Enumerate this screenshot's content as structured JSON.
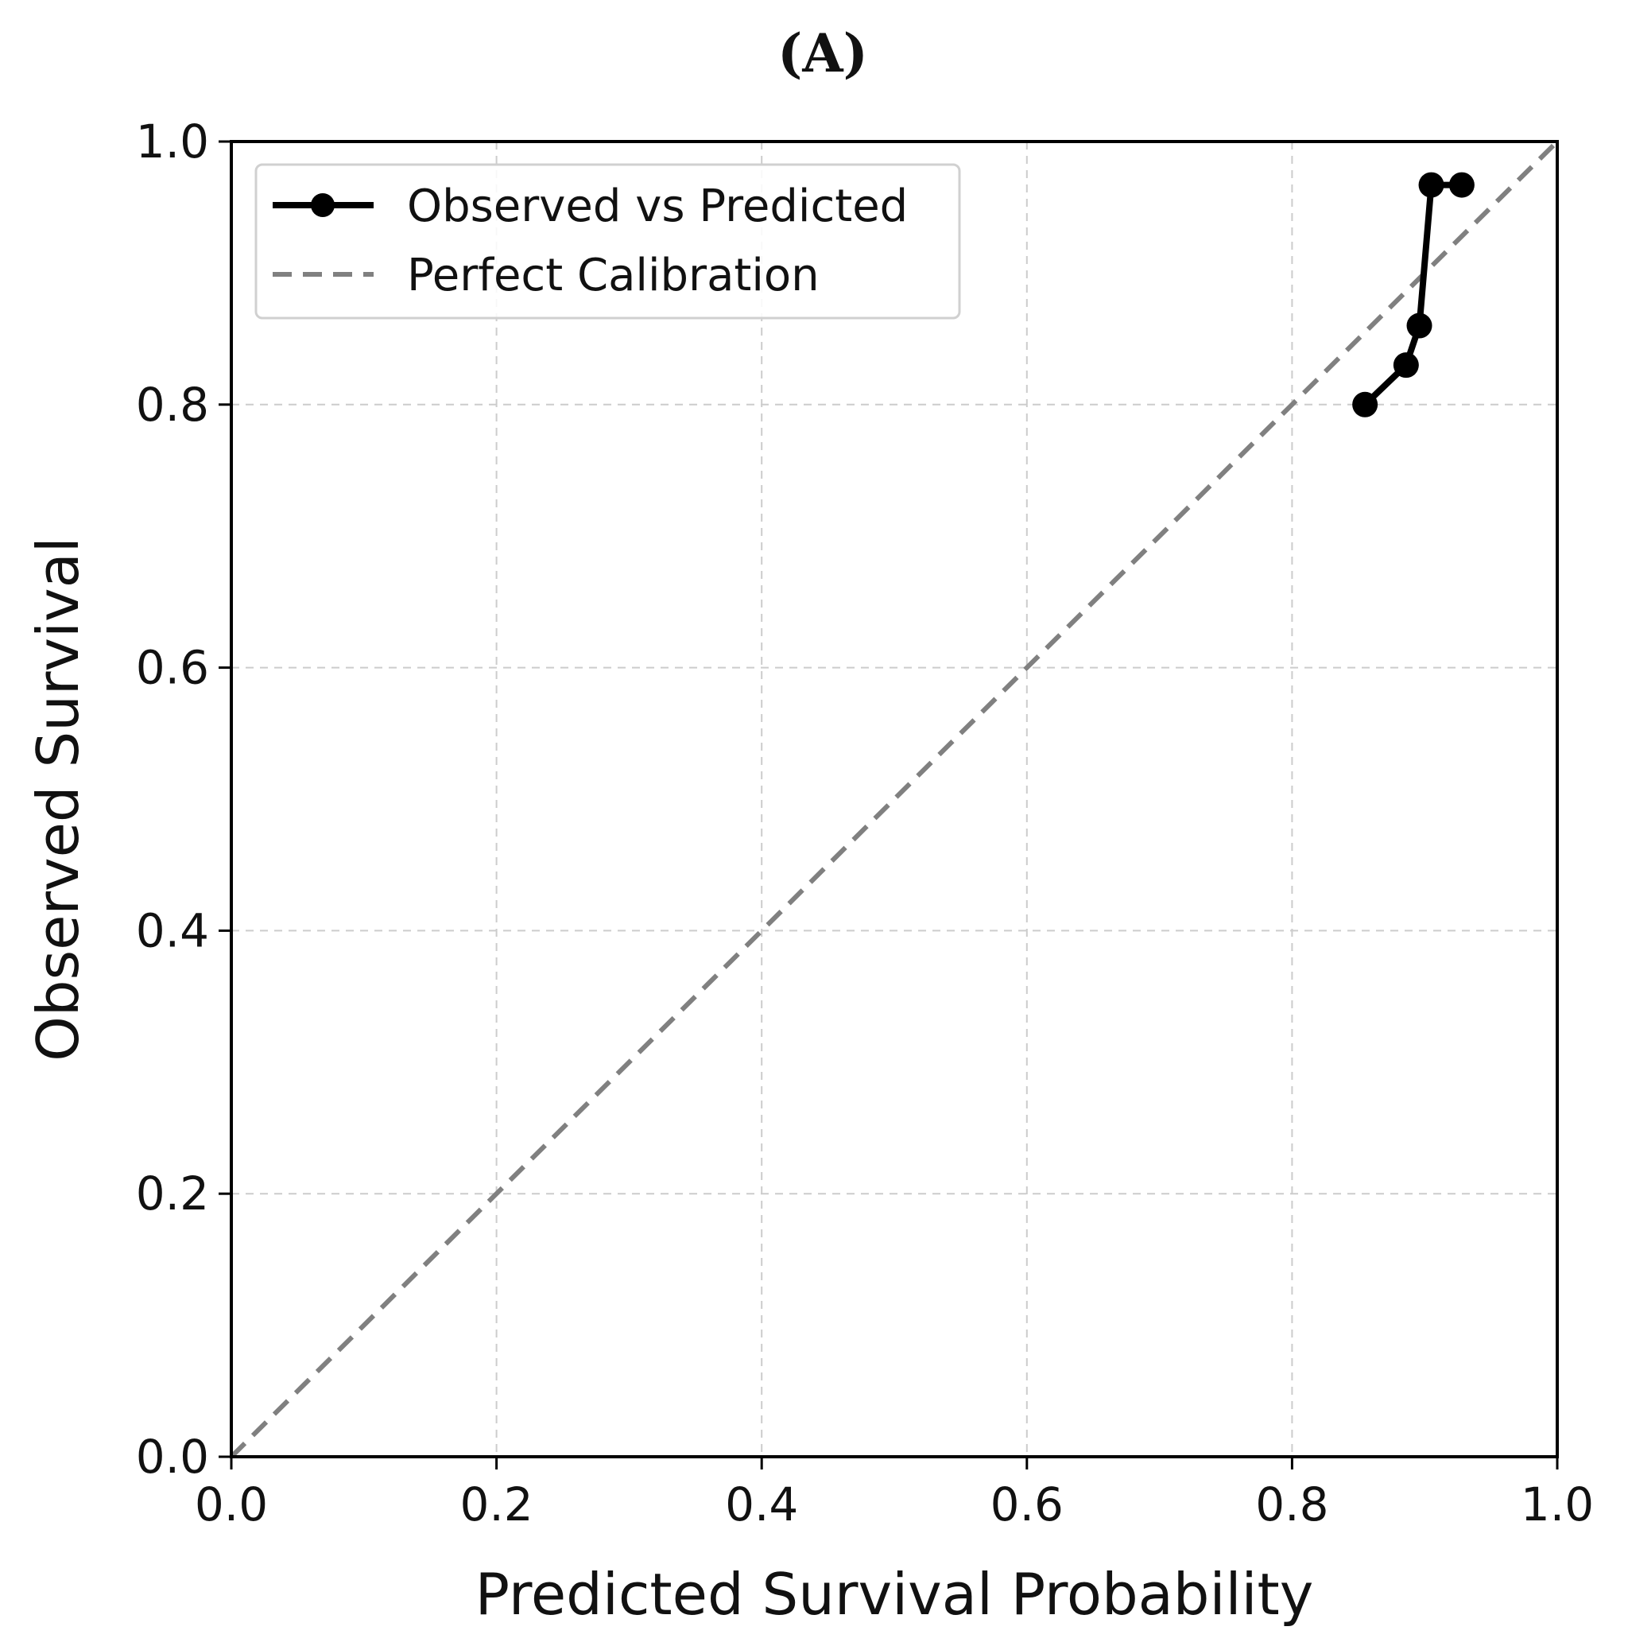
{
  "panel_label": "(A)",
  "chart_data": {
    "type": "line",
    "xlabel": "Predicted Survival Probability",
    "ylabel": "Observed Survival",
    "xlim": [
      0.0,
      1.0
    ],
    "ylim": [
      0.0,
      1.0
    ],
    "x_ticks": [
      "0.0",
      "0.2",
      "0.4",
      "0.6",
      "0.8",
      "1.0"
    ],
    "y_ticks": [
      "0.0",
      "0.2",
      "0.4",
      "0.6",
      "0.8",
      "1.0"
    ],
    "grid": true,
    "legend_position": "top-left",
    "series": [
      {
        "name": "Observed vs Predicted",
        "style": "solid-with-markers",
        "color": "#000000",
        "x": [
          0.855,
          0.886,
          0.896,
          0.905,
          0.928
        ],
        "y": [
          0.8,
          0.83,
          0.86,
          0.967,
          0.967
        ]
      },
      {
        "name": "Perfect Calibration",
        "style": "dashed",
        "color": "#808080",
        "x": [
          0.0,
          1.0
        ],
        "y": [
          0.0,
          1.0
        ]
      }
    ]
  }
}
